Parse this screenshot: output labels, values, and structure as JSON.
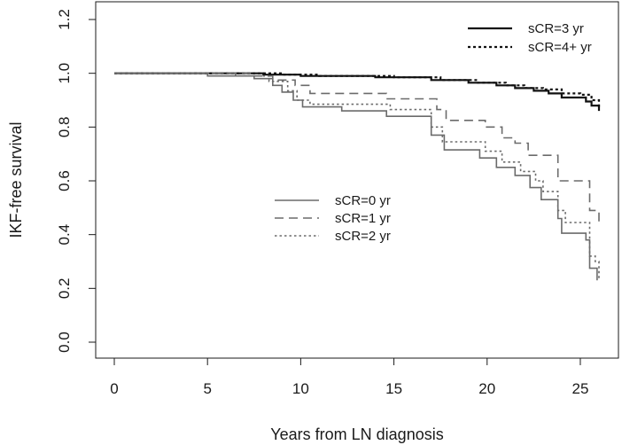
{
  "chart_data": {
    "type": "line",
    "subtype": "kaplan-meier step curves",
    "xlabel": "Years from LN diagnosis",
    "ylabel": "IKF-free survival",
    "xlim": [
      0,
      26
    ],
    "ylim": [
      0,
      1.2
    ],
    "x_ticks": [
      0,
      5,
      10,
      15,
      20,
      25
    ],
    "y_ticks": [
      0.0,
      0.2,
      0.4,
      0.6,
      0.8,
      1.0,
      1.2
    ],
    "x_tick_labels": [
      "0",
      "5",
      "10",
      "15",
      "20",
      "25"
    ],
    "y_tick_labels": [
      "0.0",
      "0.2",
      "0.4",
      "0.6",
      "0.8",
      "1.0",
      "1.2"
    ],
    "grid": false,
    "legends": [
      {
        "placement": "top-right",
        "entries": [
          0,
          1
        ]
      },
      {
        "placement": "center",
        "entries": [
          2,
          3,
          4
        ]
      }
    ],
    "series": [
      {
        "name": "sCR=3 yr",
        "line_style": "solid",
        "color": "#111111",
        "weight": "heavy",
        "points": [
          [
            0,
            1.0
          ],
          [
            6,
            1.0
          ],
          [
            8,
            0.995
          ],
          [
            10,
            0.99
          ],
          [
            14,
            0.985
          ],
          [
            17,
            0.975
          ],
          [
            19,
            0.965
          ],
          [
            20.5,
            0.955
          ],
          [
            21.5,
            0.945
          ],
          [
            22.5,
            0.935
          ],
          [
            23.3,
            0.925
          ],
          [
            24,
            0.91
          ],
          [
            25.3,
            0.895
          ],
          [
            25.6,
            0.88
          ],
          [
            26,
            0.86
          ]
        ]
      },
      {
        "name": "sCR=4+ yr",
        "line_style": "dotted",
        "color": "#111111",
        "weight": "heavy",
        "points": [
          [
            0,
            1.0
          ],
          [
            7,
            1.0
          ],
          [
            9,
            0.995
          ],
          [
            11,
            0.99
          ],
          [
            15,
            0.985
          ],
          [
            17.5,
            0.975
          ],
          [
            19.5,
            0.965
          ],
          [
            21,
            0.955
          ],
          [
            22,
            0.945
          ],
          [
            23,
            0.94
          ],
          [
            24,
            0.925
          ],
          [
            25,
            0.92
          ],
          [
            25.6,
            0.9
          ],
          [
            26,
            0.87
          ]
        ]
      },
      {
        "name": "sCR=0 yr",
        "line_style": "solid",
        "color": "#6b6b6b",
        "weight": "normal",
        "points": [
          [
            0,
            1.0
          ],
          [
            5,
            0.99
          ],
          [
            7.5,
            0.98
          ],
          [
            8.5,
            0.955
          ],
          [
            9,
            0.93
          ],
          [
            9.6,
            0.9
          ],
          [
            10.1,
            0.875
          ],
          [
            12.2,
            0.86
          ],
          [
            14.6,
            0.84
          ],
          [
            17,
            0.77
          ],
          [
            17.7,
            0.715
          ],
          [
            19.6,
            0.685
          ],
          [
            20.5,
            0.65
          ],
          [
            21.5,
            0.62
          ],
          [
            22.3,
            0.575
          ],
          [
            22.9,
            0.53
          ],
          [
            23.8,
            0.46
          ],
          [
            24,
            0.405
          ],
          [
            25.3,
            0.38
          ],
          [
            25.5,
            0.275
          ],
          [
            25.9,
            0.23
          ]
        ]
      },
      {
        "name": "sCR=1 yr",
        "line_style": "dashed",
        "color": "#6b6b6b",
        "weight": "normal",
        "points": [
          [
            0,
            1.0
          ],
          [
            7.5,
            0.99
          ],
          [
            8.5,
            0.975
          ],
          [
            9.7,
            0.955
          ],
          [
            10.5,
            0.925
          ],
          [
            14.6,
            0.905
          ],
          [
            17.3,
            0.865
          ],
          [
            17.8,
            0.825
          ],
          [
            19.9,
            0.8
          ],
          [
            20.8,
            0.76
          ],
          [
            21.5,
            0.74
          ],
          [
            22.2,
            0.695
          ],
          [
            23,
            0.695
          ],
          [
            23.8,
            0.6
          ],
          [
            25.5,
            0.49
          ],
          [
            26,
            0.43
          ]
        ]
      },
      {
        "name": "sCR=2 yr",
        "line_style": "dotted",
        "color": "#6b6b6b",
        "weight": "normal",
        "points": [
          [
            0,
            1.0
          ],
          [
            6.5,
            0.99
          ],
          [
            8.3,
            0.97
          ],
          [
            9.3,
            0.935
          ],
          [
            9.8,
            0.9
          ],
          [
            10.5,
            0.885
          ],
          [
            14.8,
            0.865
          ],
          [
            17,
            0.8
          ],
          [
            17.6,
            0.745
          ],
          [
            19.9,
            0.71
          ],
          [
            20.8,
            0.67
          ],
          [
            21.8,
            0.635
          ],
          [
            22.6,
            0.6
          ],
          [
            23,
            0.56
          ],
          [
            23.8,
            0.49
          ],
          [
            24.2,
            0.445
          ],
          [
            25.5,
            0.32
          ],
          [
            25.8,
            0.3
          ],
          [
            26,
            0.23
          ]
        ]
      }
    ]
  }
}
